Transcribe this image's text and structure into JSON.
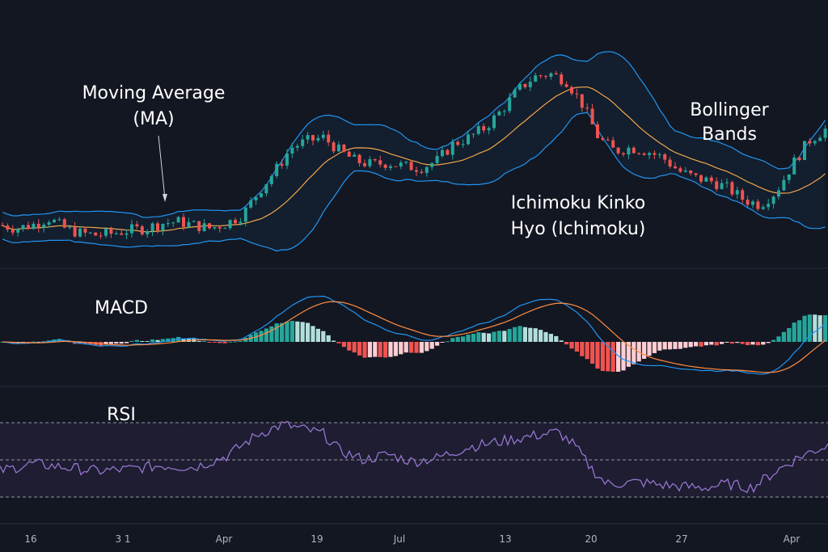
{
  "annotations": {
    "ma_line1": "Moving Average",
    "ma_line2": "(MA)",
    "bb_line1": "Bollinger",
    "bb_line2": "Bands",
    "ichi_line1": "Ichimoku Kinko",
    "ichi_line2": "Hyo (Ichimoku)",
    "macd": "MACD",
    "rsi": "RSI"
  },
  "x_ticks": [
    "16",
    "3 1",
    "Apr",
    "19",
    "Jul",
    "13",
    "20",
    "27",
    "Apr"
  ],
  "colors": {
    "background": "#131722",
    "bullish": "#26a69a",
    "bearish": "#ef5350",
    "bullish_light": "#b2dfdb",
    "bearish_light": "#ffcdd2",
    "bollinger": "#2196f3",
    "moving_average": "#f0a64a",
    "macd_line": "#2196f3",
    "signal_line": "#ff8c42",
    "rsi_line": "#9575cd"
  },
  "chart_data": {
    "type": "candlestick",
    "panels": [
      "price",
      "macd",
      "rsi"
    ],
    "indicators": [
      "Moving Average",
      "Bollinger Bands",
      "MACD",
      "RSI"
    ],
    "price_anchor_points": [
      [
        0,
        60
      ],
      [
        20,
        58
      ],
      [
        40,
        60
      ],
      [
        60,
        64
      ],
      [
        80,
        58
      ],
      [
        100,
        55
      ],
      [
        120,
        54
      ],
      [
        140,
        55
      ],
      [
        160,
        57
      ],
      [
        180,
        58
      ],
      [
        200,
        61
      ],
      [
        220,
        62
      ],
      [
        240,
        60
      ],
      [
        260,
        58
      ],
      [
        280,
        61
      ],
      [
        300,
        66
      ],
      [
        320,
        80
      ],
      [
        340,
        92
      ],
      [
        360,
        106
      ],
      [
        380,
        110
      ],
      [
        400,
        112
      ],
      [
        420,
        104
      ],
      [
        440,
        98
      ],
      [
        460,
        96
      ],
      [
        480,
        97
      ],
      [
        500,
        95
      ],
      [
        520,
        94
      ],
      [
        540,
        98
      ],
      [
        560,
        108
      ],
      [
        580,
        112
      ],
      [
        600,
        118
      ],
      [
        620,
        128
      ],
      [
        640,
        140
      ],
      [
        660,
        148
      ],
      [
        680,
        150
      ],
      [
        700,
        146
      ],
      [
        720,
        132
      ],
      [
        740,
        112
      ],
      [
        760,
        104
      ],
      [
        780,
        106
      ],
      [
        800,
        104
      ],
      [
        820,
        100
      ],
      [
        840,
        92
      ],
      [
        860,
        88
      ],
      [
        880,
        86
      ],
      [
        900,
        82
      ],
      [
        920,
        75
      ],
      [
        940,
        72
      ],
      [
        960,
        80
      ],
      [
        980,
        96
      ],
      [
        1000,
        110
      ],
      [
        1024,
        118
      ]
    ],
    "rsi_anchor_points": [
      [
        0,
        44
      ],
      [
        40,
        48
      ],
      [
        80,
        46
      ],
      [
        120,
        44
      ],
      [
        160,
        45
      ],
      [
        200,
        47
      ],
      [
        240,
        46
      ],
      [
        280,
        52
      ],
      [
        320,
        64
      ],
      [
        350,
        69
      ],
      [
        380,
        66
      ],
      [
        400,
        64
      ],
      [
        420,
        55
      ],
      [
        450,
        50
      ],
      [
        480,
        53
      ],
      [
        510,
        49
      ],
      [
        540,
        51
      ],
      [
        580,
        57
      ],
      [
        620,
        60
      ],
      [
        660,
        63
      ],
      [
        690,
        65
      ],
      [
        710,
        58
      ],
      [
        730,
        46
      ],
      [
        750,
        37
      ],
      [
        790,
        38
      ],
      [
        830,
        36
      ],
      [
        870,
        35
      ],
      [
        900,
        37
      ],
      [
        930,
        35
      ],
      [
        960,
        44
      ],
      [
        990,
        52
      ],
      [
        1024,
        58
      ]
    ],
    "rsi_levels": [
      70,
      50,
      30
    ]
  }
}
